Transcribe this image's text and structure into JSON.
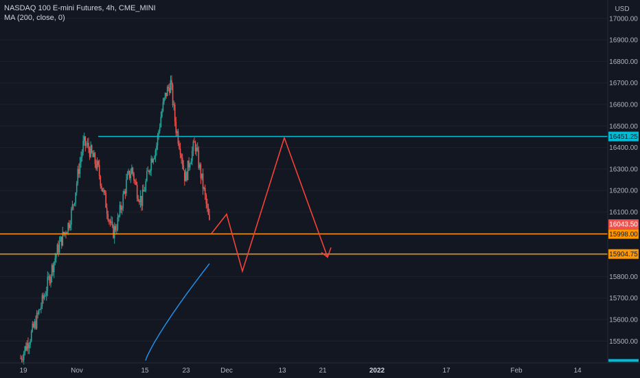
{
  "legend": {
    "symbol": "NASDAQ 100 E-mini Futures, 4h, CME_MINI",
    "indicator": "MA (200, close, 0)"
  },
  "chart_data": {
    "type": "candlestick",
    "currency": "USD",
    "ylim": [
      15410,
      17100
    ],
    "y_ticks": [
      "15500.00",
      "15600.00",
      "15700.00",
      "15800.00",
      "15900.00",
      "16000.00",
      "16100.00",
      "16200.00",
      "16300.00",
      "16400.00",
      "16500.00",
      "16600.00",
      "16700.00",
      "16800.00",
      "16900.00",
      "17000.00"
    ],
    "x_ticks": [
      "19",
      "Nov",
      "15",
      "23",
      "Dec",
      "13",
      "21",
      "2022",
      "17",
      "Feb",
      "14"
    ],
    "x_tick_bold": "2022",
    "colors": {
      "up": "#26a69a",
      "down": "#ef5350",
      "ma": "#2196f3",
      "resistance": "#00bcd4",
      "support": "#ff9800",
      "projection": "#f44336",
      "background": "#131722",
      "grid": "#1e222d",
      "text": "#b2b5be"
    },
    "candles": {
      "summary": "Rally from ~15400 in late October to ~16460 (early Nov), consolidation 15950–16450, spike to ~16770 (Nov 22), decline to ~16040 (Nov 26)",
      "close_path": [
        15420,
        15470,
        15520,
        15580,
        15650,
        15720,
        15800,
        15880,
        15950,
        16000,
        16050,
        16150,
        16300,
        16420,
        16400,
        16350,
        16300,
        16200,
        16100,
        16000,
        16050,
        16150,
        16250,
        16300,
        16200,
        16150,
        16250,
        16350,
        16400,
        16550,
        16650,
        16700,
        16500,
        16400,
        16250,
        16350,
        16420,
        16300,
        16180,
        16043.5
      ]
    },
    "moving_average": {
      "name": "MA (200, close, 0)",
      "from": 15410,
      "to": 15860
    },
    "levels": [
      {
        "name": "resistance",
        "value": 16451.25,
        "label": "16451.25",
        "color": "#00bcd4"
      },
      {
        "name": "support-upper",
        "value": 15998.0,
        "label": "15998.00",
        "color": "#ff9800"
      },
      {
        "name": "support-lower",
        "value": 15904.75,
        "label": "15904.75",
        "color": "#ff9800"
      }
    ],
    "last_price": {
      "value": 16043.5,
      "label": "16043.50",
      "color": "#ef5350"
    },
    "projection": {
      "points": [
        16000,
        16090,
        15825,
        16445,
        15890
      ],
      "arrow_end": 15935
    }
  }
}
